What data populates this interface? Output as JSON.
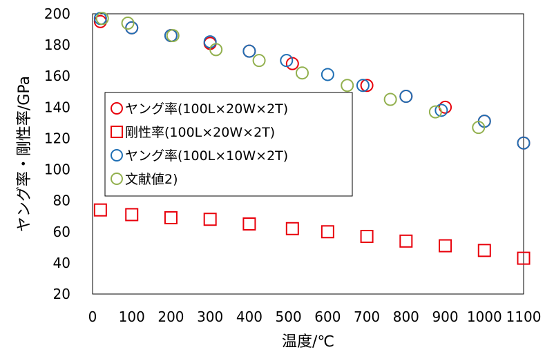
{
  "chart_data": {
    "type": "scatter",
    "xlabel": "温度/℃",
    "ylabel": "ヤング率・剛性率/GPa",
    "xlim": [
      0,
      1100
    ],
    "ylim": [
      20,
      200
    ],
    "x_ticks": [
      "0",
      "100",
      "200",
      "300",
      "400",
      "500",
      "600",
      "700",
      "800",
      "900",
      "1000",
      "1100"
    ],
    "y_ticks": [
      "20",
      "40",
      "60",
      "80",
      "100",
      "120",
      "140",
      "160",
      "180",
      "200"
    ],
    "grid": false,
    "legend": "center-left",
    "series": [
      {
        "name": "ヤング率(100L×20W×2T)",
        "marker": "circle",
        "color": "#e8000b",
        "x": [
          20,
          100,
          200,
          300,
          400,
          510,
          700,
          800,
          900,
          1000,
          1100
        ],
        "y": [
          195,
          191,
          186,
          181,
          176,
          168,
          154,
          147,
          140,
          131,
          117
        ]
      },
      {
        "name": "剛性率(100L×20W×2T)",
        "marker": "square",
        "color": "#e8000b",
        "x": [
          20,
          100,
          200,
          300,
          400,
          510,
          600,
          700,
          800,
          900,
          1000,
          1100
        ],
        "y": [
          74,
          71,
          69,
          68,
          65,
          62,
          60,
          57,
          54,
          51,
          48,
          43
        ]
      },
      {
        "name": "ヤング率(100L×10W×2T)",
        "marker": "circle",
        "color": "#1f6fb4",
        "x": [
          20,
          100,
          200,
          300,
          400,
          495,
          600,
          690,
          800,
          890,
          1000,
          1100
        ],
        "y": [
          197,
          191,
          186,
          182,
          176,
          170,
          161,
          154,
          147,
          138,
          131,
          117
        ]
      },
      {
        "name": "文献値2)",
        "marker": "circle",
        "color": "#92b04e",
        "x": [
          25,
          90,
          205,
          315,
          425,
          535,
          650,
          760,
          875,
          985
        ],
        "y": [
          197,
          194,
          186,
          177,
          170,
          162,
          154,
          145,
          137,
          127
        ]
      }
    ]
  }
}
